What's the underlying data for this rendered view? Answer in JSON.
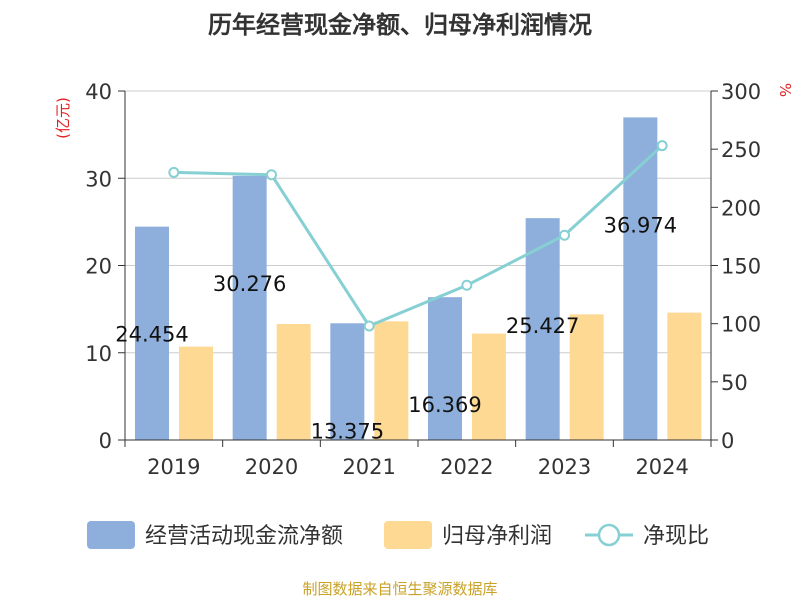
{
  "title": "历年经营现金净额、归母净利润情况",
  "source": "制图数据来自恒生聚源数据库",
  "colors": {
    "cash_flow": "#8eaedb",
    "net_profit": "#fdd994",
    "ratio": "#86d0d4",
    "unit": "#e02020",
    "source": "#c9a227"
  },
  "chart_data": {
    "type": "bar",
    "title": "历年经营现金净额、归母净利润情况",
    "categories": [
      "2019",
      "2020",
      "2021",
      "2022",
      "2023",
      "2024"
    ],
    "y_left": {
      "unit": "(亿元)",
      "lim": [
        0,
        40
      ],
      "ticks": [
        "0",
        "10",
        "20",
        "30",
        "40"
      ]
    },
    "y_right": {
      "unit": "%",
      "lim": [
        0,
        300
      ],
      "ticks": [
        "0",
        "50",
        "100",
        "150",
        "200",
        "250",
        "300"
      ]
    },
    "series": [
      {
        "name": "经营活动现金流净额",
        "type": "bar",
        "axis": "left",
        "values": [
          24.454,
          30.276,
          13.375,
          16.369,
          25.427,
          36.974
        ],
        "labels": [
          "24.454",
          "30.276",
          "13.375",
          "16.369",
          "25.427",
          "36.974"
        ]
      },
      {
        "name": "归母净利润",
        "type": "bar",
        "axis": "left",
        "values": [
          10.7,
          13.3,
          13.6,
          12.2,
          14.4,
          14.6
        ]
      },
      {
        "name": "净现比",
        "type": "line",
        "axis": "right",
        "values": [
          230,
          228,
          98,
          133,
          176,
          253
        ]
      }
    ],
    "grid": true,
    "legend": "bottom"
  }
}
